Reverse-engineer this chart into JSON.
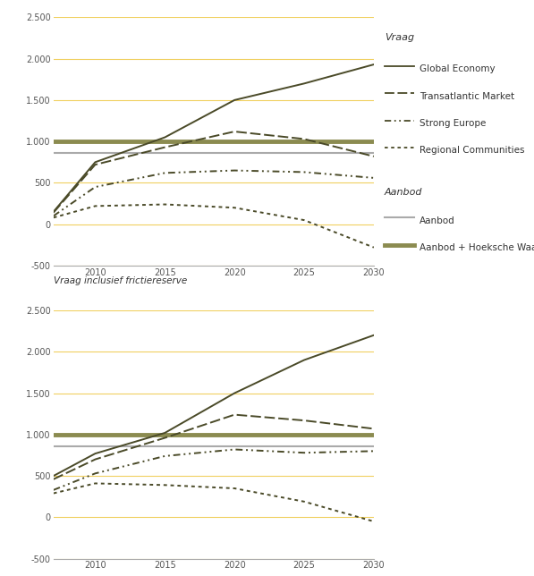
{
  "title_top": "",
  "subtitle_top": "",
  "label_bottom": "Vraag inclusief frictiereserve",
  "xlabel": "",
  "ylabel": "",
  "xlim": [
    2007,
    2030
  ],
  "ylim": [
    -500,
    2500
  ],
  "yticks": [
    -500,
    0,
    500,
    1000,
    1500,
    2000,
    2500
  ],
  "ytick_labels": [
    "-500",
    "0",
    "500",
    "1.000",
    "1.500",
    "2.000",
    "2.500"
  ],
  "xticks": [
    2010,
    2015,
    2020,
    2025,
    2030
  ],
  "years": [
    2007,
    2010,
    2015,
    2020,
    2025,
    2030
  ],
  "top_global_economy": [
    150,
    750,
    1050,
    1500,
    1700,
    1930
  ],
  "top_transatlantic_market": [
    140,
    720,
    930,
    1120,
    1030,
    820
  ],
  "top_strong_europe": [
    100,
    450,
    620,
    650,
    630,
    560
  ],
  "top_regional_communities": [
    80,
    220,
    240,
    200,
    50,
    -280
  ],
  "bot_global_economy": [
    500,
    770,
    1020,
    1500,
    1900,
    2200
  ],
  "bot_transatlantic_market": [
    460,
    700,
    960,
    1240,
    1170,
    1070
  ],
  "bot_strong_europe": [
    330,
    530,
    740,
    820,
    780,
    800
  ],
  "bot_regional_communities": [
    290,
    410,
    390,
    350,
    190,
    -50
  ],
  "aanbod_value": 860,
  "aanbod_hw_value": 1000,
  "color_demand": "#4a4a28",
  "color_aanbod": "#aaaaaa",
  "color_aanbod_hw": "#8b8b50",
  "color_gridline": "#f0d060",
  "color_zero": "#f0d060",
  "legend_vraag_title": "Vraag",
  "legend_aanbod_title": "Aanbod",
  "legend_entries_vraag": [
    "Global Economy",
    "Transatlantic Market",
    "Strong Europe",
    "Regional Communities"
  ],
  "legend_entries_aanbod": [
    "Aanbod",
    "Aanbod + Hoeksche Waa…"
  ],
  "background_color": "#ffffff",
  "plot_bg": "#ffffff"
}
